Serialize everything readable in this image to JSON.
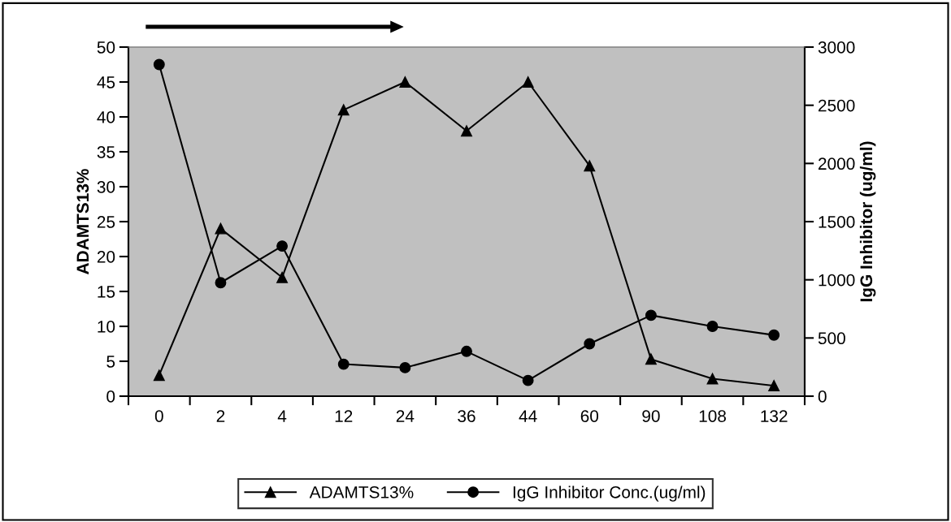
{
  "chart_data": {
    "type": "line",
    "categories": [
      "0",
      "2",
      "4",
      "12",
      "24",
      "36",
      "44",
      "60",
      "90",
      "108",
      "132"
    ],
    "series": [
      {
        "name": "ADAMTS13%",
        "color": "#000000",
        "marker": "triangle",
        "values": [
          3,
          24,
          17,
          41,
          45,
          38,
          45,
          33,
          5.3,
          2.5,
          1.5
        ]
      },
      {
        "name": "IgG Inhibitor Conc.(ug/ml)",
        "color": "#000000",
        "marker": "circle",
        "axis": "y2",
        "values": [
          2850,
          975,
          1290,
          275,
          245,
          385,
          135,
          450,
          695,
          600,
          525
        ]
      }
    ],
    "ylabel": "ADAMTS13%",
    "y2label": "IgG Inhibitor (ug/ml)",
    "ylim": [
      0,
      50
    ],
    "yticks": [
      0,
      5,
      10,
      15,
      20,
      25,
      30,
      35,
      40,
      45,
      50
    ],
    "y2lim": [
      0,
      3000
    ],
    "y2ticks": [
      0,
      500,
      1000,
      1500,
      2000,
      2500,
      3000
    ],
    "grid": false,
    "legend": "bottom",
    "line_style": "solid"
  }
}
